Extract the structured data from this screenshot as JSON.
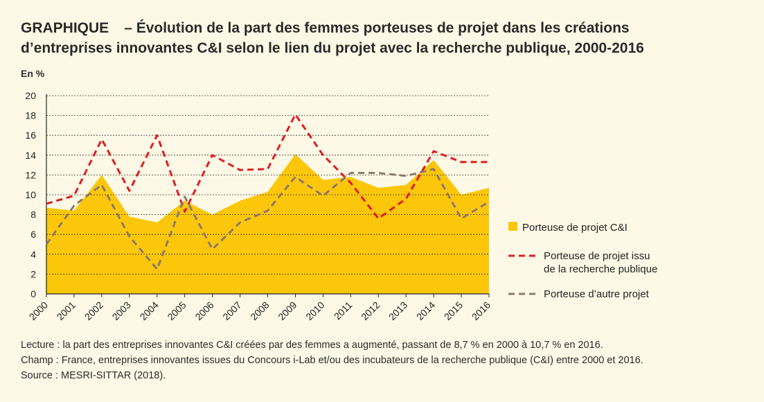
{
  "header": {
    "label": "GRAPHIQUE",
    "title_line1": "– Évolution de la part des femmes porteuses de projet dans les créations",
    "title_line2": "d’entreprises innovantes C&I selon le lien du projet avec la recherche publique, 2000-2016"
  },
  "colors": {
    "area": "#fcc60a",
    "recherche": "#e01c22",
    "autre": "#8c7a6b",
    "grid": "#333333"
  },
  "chart_data": {
    "type": "area",
    "ylabel": "En %",
    "ylim": [
      0,
      20
    ],
    "yticks": [
      "0",
      "2",
      "4",
      "6",
      "8",
      "10",
      "12",
      "14",
      "16",
      "18",
      "20"
    ],
    "categories": [
      "2000",
      "2001",
      "2002",
      "2003",
      "2004",
      "2005",
      "2006",
      "2007",
      "2008",
      "2009",
      "2010",
      "2011",
      "2012",
      "2013",
      "2014",
      "2015",
      "2016"
    ],
    "series": [
      {
        "name": "Porteuse de projet C&I",
        "kind": "area",
        "values": [
          8.7,
          8.4,
          12.0,
          7.8,
          7.2,
          9.4,
          8.0,
          9.4,
          10.3,
          14.1,
          11.5,
          11.8,
          10.7,
          11.0,
          13.5,
          10.0,
          10.7
        ]
      },
      {
        "name": "Porteuse de projet issu de la recherche publique",
        "kind": "dashed-line",
        "values": [
          9.1,
          9.9,
          15.6,
          10.4,
          16.0,
          8.3,
          14.0,
          12.5,
          12.6,
          18.1,
          14.0,
          11.2,
          7.6,
          9.6,
          14.4,
          13.3,
          13.3
        ]
      },
      {
        "name": "Porteuse d’autre projet",
        "kind": "dashed-line",
        "values": [
          5.0,
          8.9,
          11.0,
          5.8,
          2.5,
          9.8,
          4.5,
          7.2,
          8.4,
          11.8,
          9.9,
          12.2,
          12.2,
          11.9,
          12.6,
          7.6,
          9.3
        ]
      }
    ],
    "legend": [
      {
        "line1": "Porteuse de projet C&I",
        "line2": ""
      },
      {
        "line1": "Porteuse de projet issu",
        "line2": "de la recherche publique"
      },
      {
        "line1": "Porteuse d’autre projet",
        "line2": ""
      }
    ],
    "legend_position": "right"
  },
  "notes": {
    "lecture": "Lecture : la part des entreprises innovantes C&I créées par des femmes a augmenté, passant de 8,7 % en 2000 à 10,7 % en 2016.",
    "champ": "Champ : France, entreprises innovantes issues du Concours i-Lab et/ou des incubateurs de la recherche publique (C&I) entre 2000 et 2016.",
    "source": "Source : MESRI-SITTAR (2018)."
  }
}
